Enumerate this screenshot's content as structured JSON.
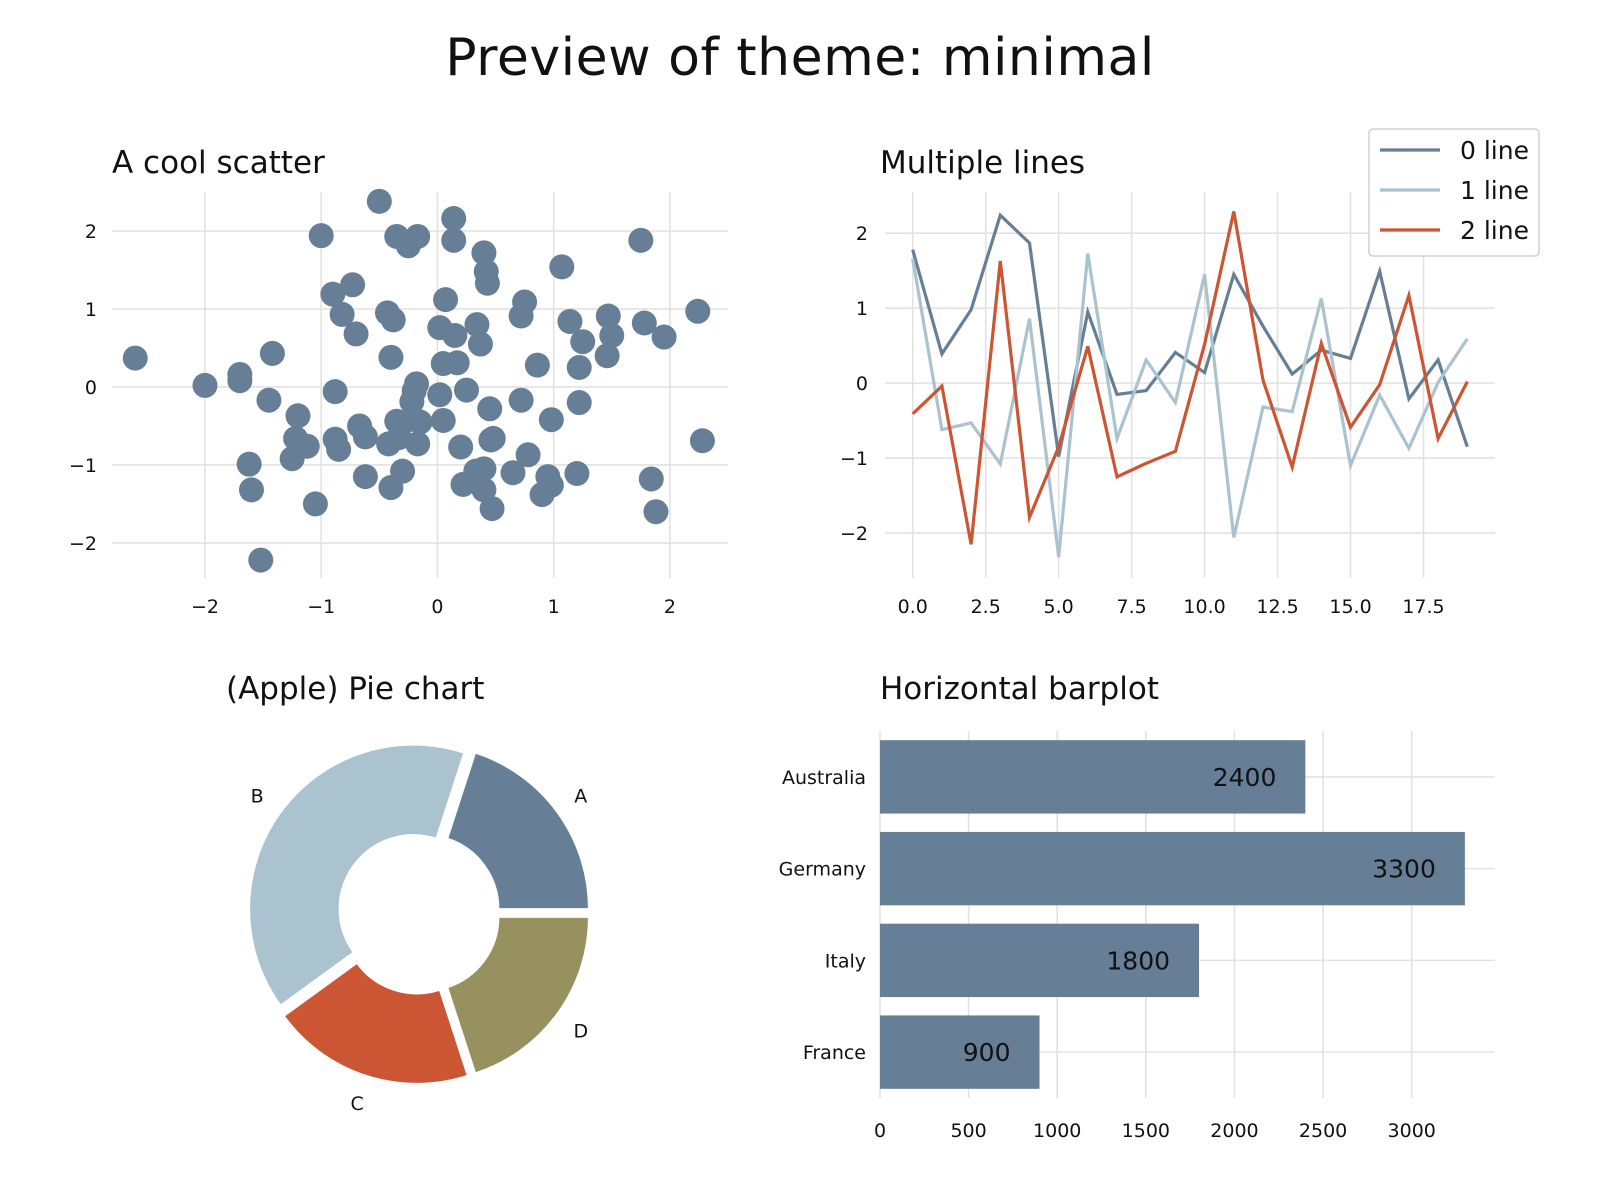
{
  "title": "Preview of theme: minimal",
  "chart_data": [
    {
      "type": "scatter",
      "title": "A cool scatter",
      "xlim": [
        -2.8,
        2.5
      ],
      "ylim": [
        -2.45,
        2.5
      ],
      "xticks": [
        -2,
        -1,
        0,
        1,
        2
      ],
      "yticks": [
        -2,
        -1,
        0,
        1,
        2
      ],
      "xtick_labels": [
        "−2",
        "−1",
        "0",
        "1",
        "2"
      ],
      "ytick_labels": [
        "−2",
        "−1",
        "0",
        "1",
        "2"
      ],
      "grid": true,
      "color": "#667f96",
      "points": [
        [
          -2.6,
          0.37
        ],
        [
          -2.0,
          0.02
        ],
        [
          -1.7,
          0.08
        ],
        [
          -1.7,
          0.16
        ],
        [
          -1.45,
          -0.17
        ],
        [
          -1.42,
          0.43
        ],
        [
          -1.62,
          -0.99
        ],
        [
          -1.6,
          -1.32
        ],
        [
          -1.52,
          -2.22
        ],
        [
          -1.2,
          -0.37
        ],
        [
          -1.22,
          -0.66
        ],
        [
          -1.25,
          -0.92
        ],
        [
          -1.12,
          -0.76
        ],
        [
          -1.05,
          -1.5
        ],
        [
          -1.0,
          1.94
        ],
        [
          -0.9,
          1.19
        ],
        [
          -0.82,
          0.93
        ],
        [
          -0.73,
          1.31
        ],
        [
          -0.7,
          0.68
        ],
        [
          -0.88,
          -0.06
        ],
        [
          -0.88,
          -0.67
        ],
        [
          -0.85,
          -0.8
        ],
        [
          -0.67,
          -0.5
        ],
        [
          -0.62,
          -0.64
        ],
        [
          -0.62,
          -1.15
        ],
        [
          -0.5,
          2.38
        ],
        [
          -0.42,
          -0.73
        ],
        [
          -0.43,
          0.95
        ],
        [
          -0.38,
          0.86
        ],
        [
          -0.4,
          0.38
        ],
        [
          -0.35,
          1.93
        ],
        [
          -0.4,
          -1.29
        ],
        [
          -0.3,
          -1.08
        ],
        [
          -0.35,
          -0.44
        ],
        [
          -0.3,
          -0.46
        ],
        [
          -0.33,
          -0.65
        ],
        [
          -0.25,
          1.81
        ],
        [
          -0.17,
          1.93
        ],
        [
          -0.22,
          -0.19
        ],
        [
          -0.15,
          -0.45
        ],
        [
          -0.17,
          -0.73
        ],
        [
          -0.2,
          -0.05
        ],
        [
          -0.18,
          0.04
        ],
        [
          0.02,
          0.76
        ],
        [
          0.07,
          1.12
        ],
        [
          0.05,
          0.3
        ],
        [
          0.02,
          -0.1
        ],
        [
          0.05,
          -0.43
        ],
        [
          0.17,
          0.31
        ],
        [
          0.15,
          0.66
        ],
        [
          0.14,
          1.88
        ],
        [
          0.14,
          2.16
        ],
        [
          0.2,
          -0.77
        ],
        [
          0.22,
          -1.25
        ],
        [
          0.25,
          -0.04
        ],
        [
          0.33,
          -1.08
        ],
        [
          0.34,
          0.8
        ],
        [
          0.37,
          0.55
        ],
        [
          0.4,
          -1.05
        ],
        [
          0.4,
          -1.32
        ],
        [
          0.4,
          1.72
        ],
        [
          0.42,
          1.48
        ],
        [
          0.43,
          1.33
        ],
        [
          0.45,
          -0.28
        ],
        [
          0.46,
          -0.68
        ],
        [
          0.48,
          -0.66
        ],
        [
          0.47,
          -1.56
        ],
        [
          0.65,
          -1.1
        ],
        [
          0.72,
          0.91
        ],
        [
          0.75,
          1.09
        ],
        [
          0.78,
          -0.87
        ],
        [
          0.72,
          -0.17
        ],
        [
          0.86,
          0.28
        ],
        [
          0.9,
          -1.38
        ],
        [
          0.95,
          -1.15
        ],
        [
          0.98,
          -0.42
        ],
        [
          0.98,
          -1.26
        ],
        [
          1.07,
          1.54
        ],
        [
          1.14,
          0.84
        ],
        [
          1.2,
          -1.11
        ],
        [
          1.22,
          -0.2
        ],
        [
          1.22,
          0.25
        ],
        [
          1.25,
          0.58
        ],
        [
          1.46,
          0.4
        ],
        [
          1.47,
          0.91
        ],
        [
          1.5,
          0.66
        ],
        [
          1.75,
          1.88
        ],
        [
          1.78,
          0.82
        ],
        [
          1.84,
          -1.18
        ],
        [
          1.88,
          -1.6
        ],
        [
          1.95,
          0.64
        ],
        [
          2.24,
          0.97
        ],
        [
          2.28,
          -0.69
        ]
      ]
    },
    {
      "type": "line",
      "title": "Multiple lines",
      "xlim": [
        -0.95,
        19.95
      ],
      "ylim": [
        -2.6,
        2.55
      ],
      "xticks": [
        0,
        2.5,
        5,
        7.5,
        10,
        12.5,
        15,
        17.5
      ],
      "xtick_labels": [
        "0.0",
        "2.5",
        "5.0",
        "7.5",
        "10.0",
        "12.5",
        "15.0",
        "17.5"
      ],
      "yticks": [
        -2,
        -1,
        0,
        1,
        2
      ],
      "ytick_labels": [
        "−2",
        "−1",
        "0",
        "1",
        "2"
      ],
      "grid": true,
      "legend": "top-right",
      "x": [
        0,
        1,
        2,
        3,
        4,
        5,
        6,
        7,
        8,
        9,
        10,
        11,
        12,
        13,
        14,
        15,
        16,
        17,
        18,
        19
      ],
      "series": [
        {
          "name": "0 line",
          "color": "#667f96",
          "values": [
            1.78,
            0.39,
            0.98,
            2.24,
            1.87,
            -0.98,
            0.95,
            -0.15,
            -0.1,
            0.41,
            0.14,
            1.45,
            0.76,
            0.12,
            0.44,
            0.33,
            1.49,
            -0.21,
            0.31,
            -0.85
          ]
        },
        {
          "name": "1 line",
          "color": "#abc2cf",
          "values": [
            1.66,
            -0.62,
            -0.53,
            -1.08,
            0.86,
            -2.32,
            1.73,
            -0.74,
            0.31,
            -0.26,
            1.45,
            -2.06,
            -0.32,
            -0.38,
            1.13,
            -1.1,
            -0.16,
            -0.87,
            0.01,
            0.59
          ]
        },
        {
          "name": "2 line",
          "color": "#cc5534",
          "values": [
            -0.41,
            -0.04,
            -2.15,
            1.63,
            -1.79,
            -0.85,
            0.49,
            -1.25,
            -1.07,
            -0.91,
            0.52,
            2.29,
            0.04,
            -1.12,
            0.53,
            -0.59,
            -0.02,
            1.17,
            -0.74,
            0.02
          ]
        }
      ]
    },
    {
      "type": "pie",
      "title": "(Apple) Pie chart",
      "donut": true,
      "slices": [
        {
          "label": "A",
          "value": 20,
          "color": "#667f96"
        },
        {
          "label": "B",
          "value": 40,
          "color": "#abc2cf"
        },
        {
          "label": "C",
          "value": 20,
          "color": "#cc5534"
        },
        {
          "label": "D",
          "value": 20,
          "color": "#96915e"
        }
      ]
    },
    {
      "type": "bar",
      "orientation": "horizontal",
      "title": "Horizontal barplot",
      "categories": [
        "Australia",
        "Germany",
        "Italy",
        "France"
      ],
      "values": [
        2400,
        3300,
        1800,
        900
      ],
      "value_labels": [
        "2400",
        "3300",
        "1800",
        "900"
      ],
      "xlim": [
        0,
        3470
      ],
      "xticks": [
        0,
        500,
        1000,
        1500,
        2000,
        2500,
        3000
      ],
      "xtick_labels": [
        "0",
        "500",
        "1000",
        "1500",
        "2000",
        "2500",
        "3000"
      ],
      "grid": true,
      "color": "#667f96"
    }
  ]
}
